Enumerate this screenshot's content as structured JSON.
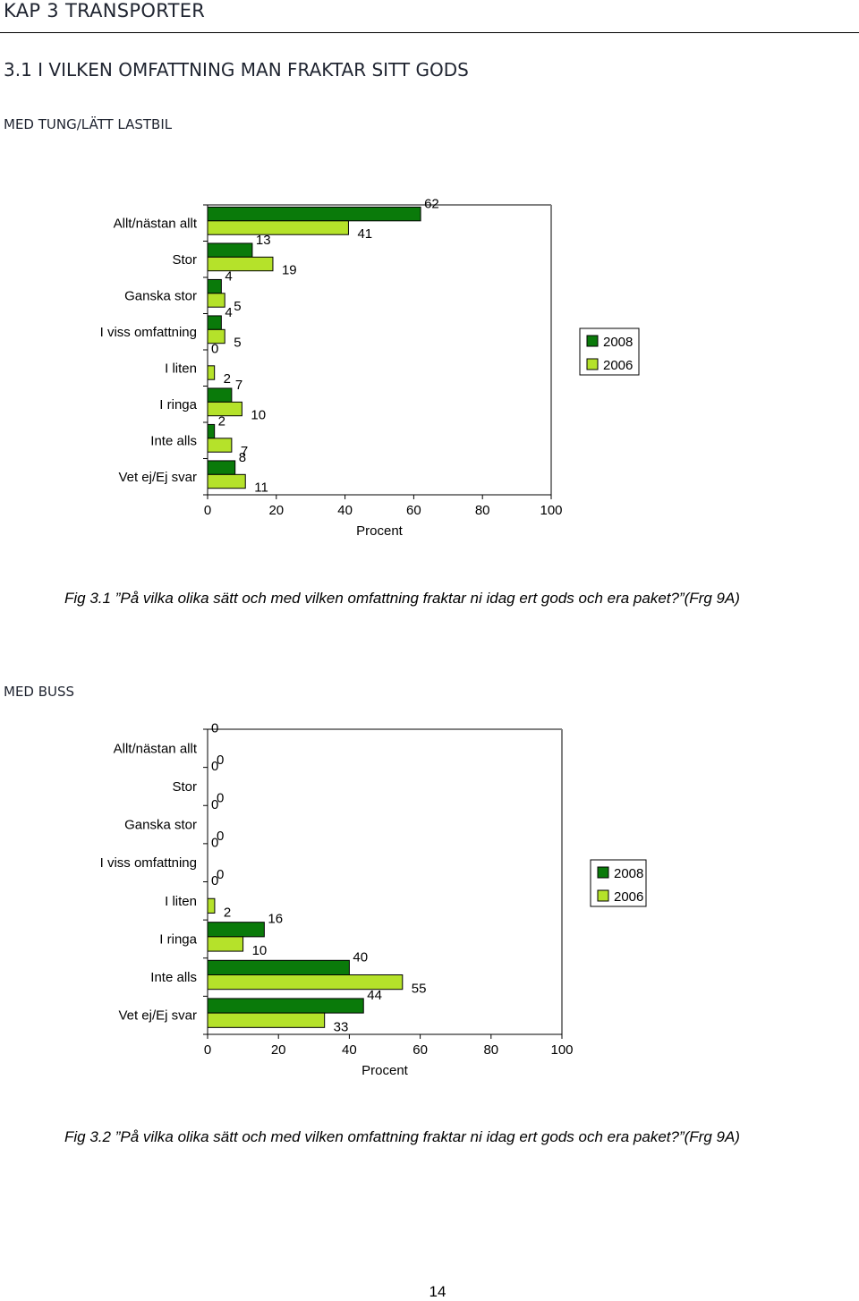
{
  "page": {
    "chapter": "KAP 3 TRANSPORTER",
    "section": "3.1 I VILKEN OMFATTNING MAN FRAKTAR SITT GODS",
    "subsection1": "MED TUNG/LÄTT LASTBIL",
    "subsection2": "MED BUSS",
    "caption1": "Fig 3.1 ”På vilka olika sätt och med vilken omfattning fraktar ni idag ert gods och era paket?”(Frg 9A)",
    "caption2": "Fig 3.2 ”På vilka olika sätt och med vilken omfattning fraktar ni idag ert gods och era paket?”(Frg 9A)",
    "page_number": "14"
  },
  "colors": {
    "series_2008": "#0a7a0a",
    "series_2006": "#b5e22a",
    "axis": "#808080"
  },
  "chart_data": [
    {
      "type": "bar",
      "orientation": "horizontal",
      "categories": [
        "Allt/nästan allt",
        "Stor",
        "Ganska stor",
        "I viss omfattning",
        "I liten",
        "I ringa",
        "Inte alls",
        "Vet ej/Ej svar"
      ],
      "series": [
        {
          "name": "2008",
          "values": [
            62,
            13,
            4,
            4,
            0,
            7,
            2,
            8
          ]
        },
        {
          "name": "2006",
          "values": [
            41,
            19,
            5,
            5,
            2,
            10,
            7,
            11
          ]
        }
      ],
      "xlabel": "Procent",
      "xlim": [
        0,
        100
      ],
      "xticks": [
        "0",
        "20",
        "40",
        "60",
        "80",
        "100"
      ],
      "legend": "right",
      "grid": false
    },
    {
      "type": "bar",
      "orientation": "horizontal",
      "categories": [
        "Allt/nästan allt",
        "Stor",
        "Ganska stor",
        "I viss omfattning",
        "I liten",
        "I ringa",
        "Inte alls",
        "Vet ej/Ej svar"
      ],
      "series": [
        {
          "name": "2008",
          "values": [
            0,
            0,
            0,
            0,
            0,
            16,
            40,
            44
          ]
        },
        {
          "name": "2006",
          "values": [
            0,
            0,
            0,
            0,
            2,
            10,
            55,
            33
          ]
        }
      ],
      "xlabel": "Procent",
      "xlim": [
        0,
        100
      ],
      "xticks": [
        "0",
        "20",
        "40",
        "60",
        "80",
        "100"
      ],
      "legend": "right",
      "grid": false
    }
  ]
}
